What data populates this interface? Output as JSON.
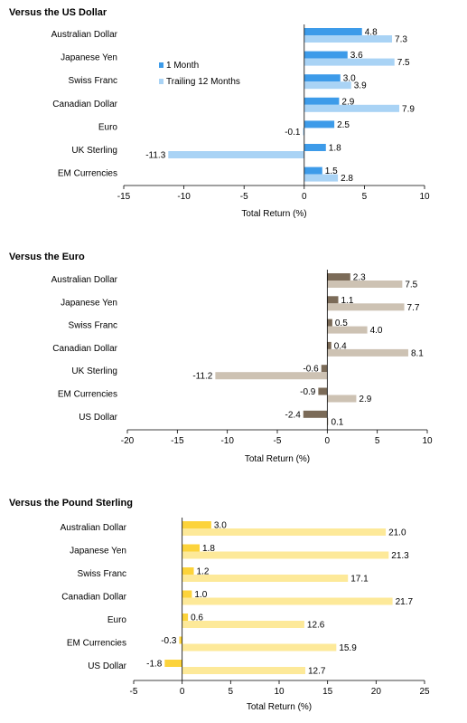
{
  "chart_data": [
    {
      "type": "bar",
      "orientation": "horizontal",
      "title": "Versus the US Dollar",
      "xlabel": "Total Return (%)",
      "xlim": [
        -15,
        10
      ],
      "xticks": [
        -15,
        -10,
        -5,
        0,
        5,
        10
      ],
      "categories": [
        "Australian Dollar",
        "Japanese Yen",
        "Swiss Franc",
        "Canadian Dollar",
        "Euro",
        "UK Sterling",
        "EM Currencies"
      ],
      "series": [
        {
          "name": "1 Month",
          "values": [
            4.8,
            3.6,
            3.0,
            2.9,
            2.5,
            1.8,
            1.5
          ]
        },
        {
          "name": "Trailing 12 Months",
          "values": [
            7.3,
            7.5,
            3.9,
            7.9,
            -0.1,
            -11.3,
            2.8
          ]
        }
      ],
      "legend": "center-left",
      "colors": [
        "#3d9be9",
        "#a9d3f5"
      ]
    },
    {
      "type": "bar",
      "orientation": "horizontal",
      "title": "Versus the Euro",
      "xlabel": "Total Return (%)",
      "xlim": [
        -20,
        10
      ],
      "xticks": [
        -20,
        -15,
        -10,
        -5,
        0,
        5,
        10
      ],
      "categories": [
        "Australian Dollar",
        "Japanese Yen",
        "Swiss Franc",
        "Canadian Dollar",
        "UK Sterling",
        "EM Currencies",
        "US Dollar"
      ],
      "series": [
        {
          "values": [
            2.3,
            1.1,
            0.5,
            0.4,
            -0.6,
            -0.9,
            -2.4
          ]
        },
        {
          "values": [
            7.5,
            7.7,
            4.0,
            8.1,
            -11.2,
            2.9,
            0.1
          ]
        }
      ],
      "colors": [
        "#7b6b58",
        "#cdc2b3"
      ]
    },
    {
      "type": "bar",
      "orientation": "horizontal",
      "title": "Versus the Pound Sterling",
      "xlabel": "Total Return (%)",
      "xlim": [
        -5,
        25
      ],
      "xticks": [
        -5,
        0,
        5,
        10,
        15,
        20,
        25
      ],
      "categories": [
        "Australian Dollar",
        "Japanese Yen",
        "Swiss Franc",
        "Canadian Dollar",
        "Euro",
        "EM Currencies",
        "US Dollar"
      ],
      "series": [
        {
          "values": [
            3.0,
            1.8,
            1.2,
            1.0,
            0.6,
            -0.3,
            -1.8
          ]
        },
        {
          "values": [
            21.0,
            21.3,
            17.1,
            21.7,
            12.6,
            15.9,
            12.7
          ]
        }
      ],
      "colors": [
        "#fcd33b",
        "#fde999"
      ]
    }
  ]
}
